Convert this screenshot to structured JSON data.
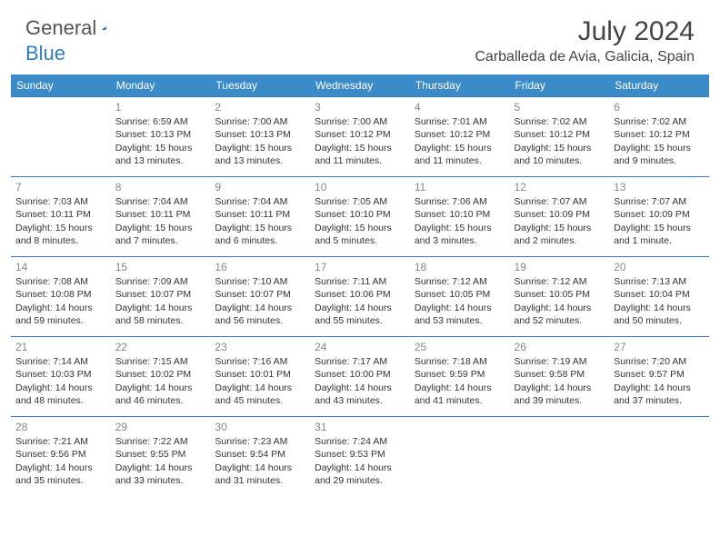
{
  "logo": {
    "part1": "General",
    "part2": "Blue",
    "triangle_color": "#2f7bbf"
  },
  "title": "July 2024",
  "location": "Carballeda de Avia, Galicia, Spain",
  "weekday_headers": [
    "Sunday",
    "Monday",
    "Tuesday",
    "Wednesday",
    "Thursday",
    "Friday",
    "Saturday"
  ],
  "header_bg": "#3b8bc9",
  "row_border": "#2f7bbf",
  "weeks": [
    [
      null,
      {
        "day": "1",
        "sunrise": "6:59 AM",
        "sunset": "10:13 PM",
        "daylight": "15 hours and 13 minutes."
      },
      {
        "day": "2",
        "sunrise": "7:00 AM",
        "sunset": "10:13 PM",
        "daylight": "15 hours and 13 minutes."
      },
      {
        "day": "3",
        "sunrise": "7:00 AM",
        "sunset": "10:12 PM",
        "daylight": "15 hours and 11 minutes."
      },
      {
        "day": "4",
        "sunrise": "7:01 AM",
        "sunset": "10:12 PM",
        "daylight": "15 hours and 11 minutes."
      },
      {
        "day": "5",
        "sunrise": "7:02 AM",
        "sunset": "10:12 PM",
        "daylight": "15 hours and 10 minutes."
      },
      {
        "day": "6",
        "sunrise": "7:02 AM",
        "sunset": "10:12 PM",
        "daylight": "15 hours and 9 minutes."
      }
    ],
    [
      {
        "day": "7",
        "sunrise": "7:03 AM",
        "sunset": "10:11 PM",
        "daylight": "15 hours and 8 minutes."
      },
      {
        "day": "8",
        "sunrise": "7:04 AM",
        "sunset": "10:11 PM",
        "daylight": "15 hours and 7 minutes."
      },
      {
        "day": "9",
        "sunrise": "7:04 AM",
        "sunset": "10:11 PM",
        "daylight": "15 hours and 6 minutes."
      },
      {
        "day": "10",
        "sunrise": "7:05 AM",
        "sunset": "10:10 PM",
        "daylight": "15 hours and 5 minutes."
      },
      {
        "day": "11",
        "sunrise": "7:06 AM",
        "sunset": "10:10 PM",
        "daylight": "15 hours and 3 minutes."
      },
      {
        "day": "12",
        "sunrise": "7:07 AM",
        "sunset": "10:09 PM",
        "daylight": "15 hours and 2 minutes."
      },
      {
        "day": "13",
        "sunrise": "7:07 AM",
        "sunset": "10:09 PM",
        "daylight": "15 hours and 1 minute."
      }
    ],
    [
      {
        "day": "14",
        "sunrise": "7:08 AM",
        "sunset": "10:08 PM",
        "daylight": "14 hours and 59 minutes."
      },
      {
        "day": "15",
        "sunrise": "7:09 AM",
        "sunset": "10:07 PM",
        "daylight": "14 hours and 58 minutes."
      },
      {
        "day": "16",
        "sunrise": "7:10 AM",
        "sunset": "10:07 PM",
        "daylight": "14 hours and 56 minutes."
      },
      {
        "day": "17",
        "sunrise": "7:11 AM",
        "sunset": "10:06 PM",
        "daylight": "14 hours and 55 minutes."
      },
      {
        "day": "18",
        "sunrise": "7:12 AM",
        "sunset": "10:05 PM",
        "daylight": "14 hours and 53 minutes."
      },
      {
        "day": "19",
        "sunrise": "7:12 AM",
        "sunset": "10:05 PM",
        "daylight": "14 hours and 52 minutes."
      },
      {
        "day": "20",
        "sunrise": "7:13 AM",
        "sunset": "10:04 PM",
        "daylight": "14 hours and 50 minutes."
      }
    ],
    [
      {
        "day": "21",
        "sunrise": "7:14 AM",
        "sunset": "10:03 PM",
        "daylight": "14 hours and 48 minutes."
      },
      {
        "day": "22",
        "sunrise": "7:15 AM",
        "sunset": "10:02 PM",
        "daylight": "14 hours and 46 minutes."
      },
      {
        "day": "23",
        "sunrise": "7:16 AM",
        "sunset": "10:01 PM",
        "daylight": "14 hours and 45 minutes."
      },
      {
        "day": "24",
        "sunrise": "7:17 AM",
        "sunset": "10:00 PM",
        "daylight": "14 hours and 43 minutes."
      },
      {
        "day": "25",
        "sunrise": "7:18 AM",
        "sunset": "9:59 PM",
        "daylight": "14 hours and 41 minutes."
      },
      {
        "day": "26",
        "sunrise": "7:19 AM",
        "sunset": "9:58 PM",
        "daylight": "14 hours and 39 minutes."
      },
      {
        "day": "27",
        "sunrise": "7:20 AM",
        "sunset": "9:57 PM",
        "daylight": "14 hours and 37 minutes."
      }
    ],
    [
      {
        "day": "28",
        "sunrise": "7:21 AM",
        "sunset": "9:56 PM",
        "daylight": "14 hours and 35 minutes."
      },
      {
        "day": "29",
        "sunrise": "7:22 AM",
        "sunset": "9:55 PM",
        "daylight": "14 hours and 33 minutes."
      },
      {
        "day": "30",
        "sunrise": "7:23 AM",
        "sunset": "9:54 PM",
        "daylight": "14 hours and 31 minutes."
      },
      {
        "day": "31",
        "sunrise": "7:24 AM",
        "sunset": "9:53 PM",
        "daylight": "14 hours and 29 minutes."
      },
      null,
      null,
      null
    ]
  ],
  "labels": {
    "sunrise": "Sunrise: ",
    "sunset": "Sunset: ",
    "daylight": "Daylight: "
  }
}
